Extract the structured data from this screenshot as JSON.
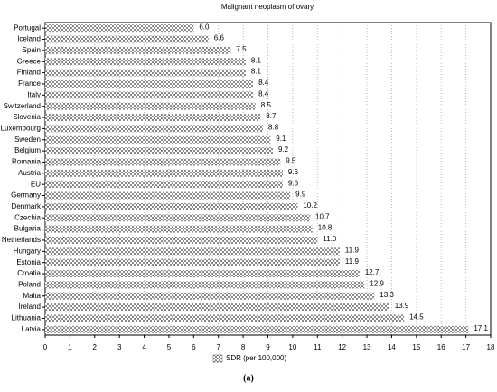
{
  "chart_data": {
    "type": "barh",
    "title": "Malignant neoplasm of ovary",
    "categories": [
      "Portugal",
      "Iceland",
      "Spain",
      "Greece",
      "Finland",
      "France",
      "Italy",
      "Switzerland",
      "Slovenia",
      "Luxembourg",
      "Sweden",
      "Belgium",
      "Romania",
      "Austria",
      "EU",
      "Germany",
      "Denmark",
      "Czechia",
      "Bulgaria",
      "Netherlands",
      "Hungary",
      "Estonia",
      "Croatia",
      "Poland",
      "Malta",
      "Ireland",
      "Lithuania",
      "Latvia"
    ],
    "values": [
      6.0,
      6.6,
      7.5,
      8.1,
      8.1,
      8.4,
      8.4,
      8.5,
      8.7,
      8.8,
      9.1,
      9.2,
      9.5,
      9.6,
      9.6,
      9.9,
      10.2,
      10.7,
      10.8,
      11.0,
      11.9,
      11.9,
      12.7,
      12.9,
      13.3,
      13.9,
      14.5,
      17.1
    ],
    "value_labels": [
      "6.0",
      "6.6",
      "7.5",
      "8.1",
      "8.1",
      "8.4",
      "8.4",
      "8.5",
      "8.7",
      "8.8",
      "9.1",
      "9.2",
      "9.5",
      "9.6",
      "9.6",
      "9.9",
      "10.2",
      "10.7",
      "10.8",
      "11.0",
      "11.9",
      "11.9",
      "12.7",
      "12.9",
      "13.3",
      "13.9",
      "14.5",
      "17.1"
    ],
    "color": "#8a8a8a",
    "xlim": [
      0,
      18
    ],
    "xticks": [
      0,
      1,
      2,
      3,
      4,
      5,
      6,
      7,
      8,
      9,
      10,
      11,
      12,
      13,
      14,
      15,
      16,
      17,
      18
    ],
    "grid": true,
    "legend": "SDR (per 100,000)",
    "caption": "(a)"
  }
}
